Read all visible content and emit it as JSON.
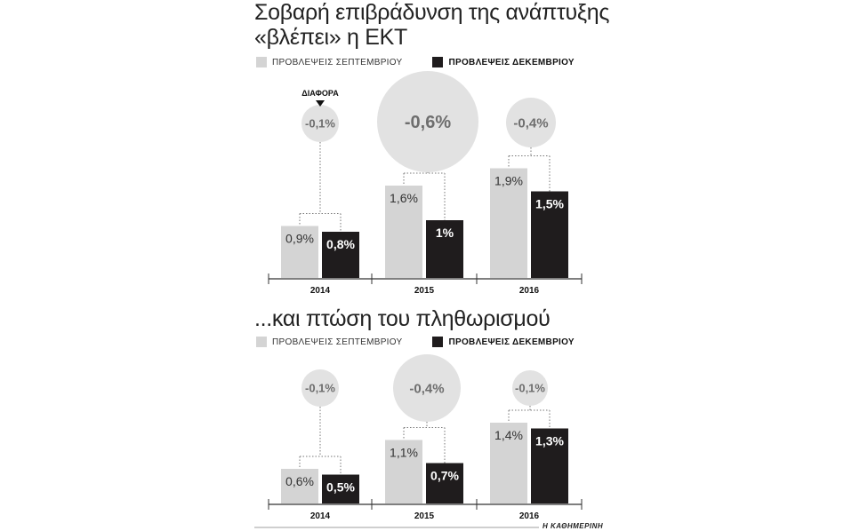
{
  "title1": "Σοβαρή επιβράδυνση της ανάπτυξης «βλέπει» η ΕΚΤ",
  "title2": "...και πτώση του πληθωρισμού",
  "legend": {
    "september": "ΠΡΟΒΛΕΨΕΙΣ ΣΕΠΤΕΜΒΡΙΟΥ",
    "december": "ΠΡΟΒΛΕΨΕΙΣ ΔΕΚΕΜΒΡΙΟΥ"
  },
  "diff_label": "ΔΙΑΦΟΡΑ",
  "source": "Η ΚΑΘΗΜΕΡΙΝΗ",
  "colors": {
    "september": "#d4d4d4",
    "december": "#1f1c1d",
    "bubble": "#e2e2e2",
    "bubble_text": "#6e6e6e"
  },
  "chart_data": [
    {
      "type": "bar",
      "title": "Σοβαρή επιβράδυνση της ανάπτυξης «βλέπει» η ΕΚΤ",
      "categories": [
        "2014",
        "2015",
        "2016"
      ],
      "series": [
        {
          "name": "ΠΡΟΒΛΕΨΕΙΣ ΣΕΠΤΕΜΒΡΙΟΥ",
          "values": [
            0.9,
            1.6,
            1.9
          ],
          "labels": [
            "0,9%",
            "1,6%",
            "1,9%"
          ]
        },
        {
          "name": "ΠΡΟΒΛΕΨΕΙΣ ΔΕΚΕΜΒΡΙΟΥ",
          "values": [
            0.8,
            1.0,
            1.5
          ],
          "labels": [
            "0,8%",
            "1%",
            "1,5%"
          ]
        }
      ],
      "differences": [
        -0.1,
        -0.6,
        -0.4
      ],
      "difference_labels": [
        "-0,1%",
        "-0,6%",
        "-0,4%"
      ],
      "ylim": [
        0,
        2.5
      ]
    },
    {
      "type": "bar",
      "title": "...και πτώση του πληθωρισμού",
      "categories": [
        "2014",
        "2015",
        "2016"
      ],
      "series": [
        {
          "name": "ΠΡΟΒΛΕΨΕΙΣ ΣΕΠΤΕΜΒΡΙΟΥ",
          "values": [
            0.6,
            1.1,
            1.4
          ],
          "labels": [
            "0,6%",
            "1,1%",
            "1,4%"
          ]
        },
        {
          "name": "ΠΡΟΒΛΕΨΕΙΣ ΔΕΚΕΜΒΡΙΟΥ",
          "values": [
            0.5,
            0.7,
            1.3
          ],
          "labels": [
            "0,5%",
            "0,7%",
            "1,3%"
          ]
        }
      ],
      "differences": [
        -0.1,
        -0.4,
        -0.1
      ],
      "difference_labels": [
        "-0,1%",
        "-0,4%",
        "-0,1%"
      ],
      "ylim": [
        0,
        2.0
      ]
    }
  ]
}
